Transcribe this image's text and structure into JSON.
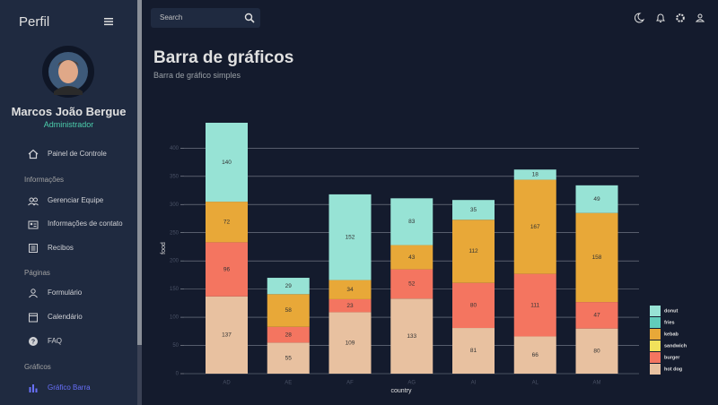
{
  "sidebar": {
    "brand": "Perfil",
    "user": {
      "name": "Marcos João Bergue",
      "role": "Administrador"
    },
    "dashboard": "Painel de Controle",
    "sections": [
      {
        "title": "Informações",
        "items": [
          "Gerenciar Equipe",
          "Informações de contato",
          "Recibos"
        ]
      },
      {
        "title": "Páginas",
        "items": [
          "Formulário",
          "Calendário",
          "FAQ"
        ]
      },
      {
        "title": "Gráficos",
        "items": [
          "Gráfico Barra"
        ]
      }
    ]
  },
  "header": {
    "search_placeholder": "Search"
  },
  "page": {
    "title": "Barra de gráficos",
    "subtitle": "Barra de gráfico simples"
  },
  "chart_data": {
    "type": "bar",
    "stacked": true,
    "x_label": "country",
    "y_label": "food",
    "categories": [
      "AD",
      "AE",
      "AF",
      "AG",
      "AI",
      "AL",
      "AM"
    ],
    "series": [
      {
        "name": "hot dog",
        "color": "#e8c1a0",
        "values": [
          137,
          55,
          109,
          133,
          81,
          66,
          80
        ]
      },
      {
        "name": "burger",
        "color": "#f47560",
        "values": [
          96,
          28,
          23,
          52,
          80,
          111,
          47
        ]
      },
      {
        "name": "sandwich",
        "color": "#f1e15b",
        "values": [
          null,
          null,
          null,
          null,
          null,
          null,
          null
        ]
      },
      {
        "name": "kebab",
        "color": "#e8a838",
        "values": [
          72,
          58,
          34,
          43,
          112,
          167,
          158
        ]
      },
      {
        "name": "fries",
        "color": "#61cdbb",
        "values": [
          null,
          null,
          null,
          null,
          null,
          null,
          null
        ]
      },
      {
        "name": "donut",
        "color": "#97e3d5",
        "values": [
          140,
          29,
          152,
          83,
          35,
          18,
          49
        ]
      }
    ],
    "ylim": [
      0,
      445
    ],
    "yticks": [
      0,
      50,
      100,
      150,
      200,
      250,
      300,
      350,
      400
    ],
    "grid": true,
    "legend": "bottom-right"
  }
}
